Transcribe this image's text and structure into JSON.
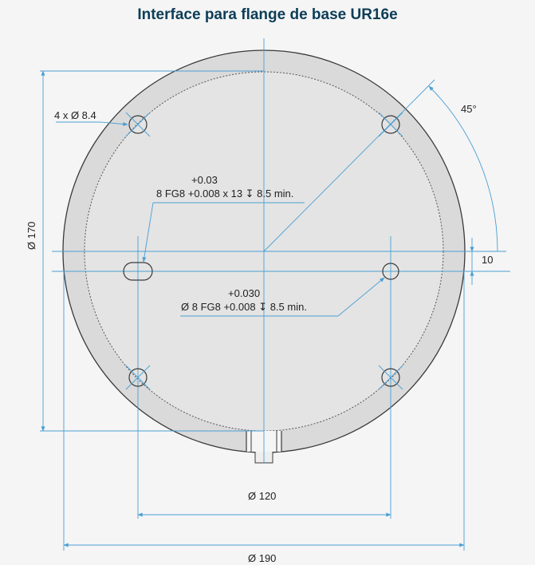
{
  "title": "Interface para flange de base UR16e",
  "labels": {
    "holes": "4 x Ø 8.4",
    "angle": "45°",
    "slot_tol_upper": "+0.03",
    "slot_spec": "8 FG8 +0.008 x 13 ↧ 8.5 min.",
    "pin_tol_upper": "+0.030",
    "pin_spec": "Ø 8 FG8 +0.008 ↧ 8.5 min.",
    "offset": "10",
    "dia_170": "Ø 170",
    "dia_120": "Ø 120",
    "dia_190": "Ø 190"
  },
  "colors": {
    "dimension": "#4a9fd4",
    "outline": "#3a3a3a",
    "outer_fill": "#dadada",
    "inner_fill": "#e4e4e4",
    "title": "#0c3d57"
  }
}
